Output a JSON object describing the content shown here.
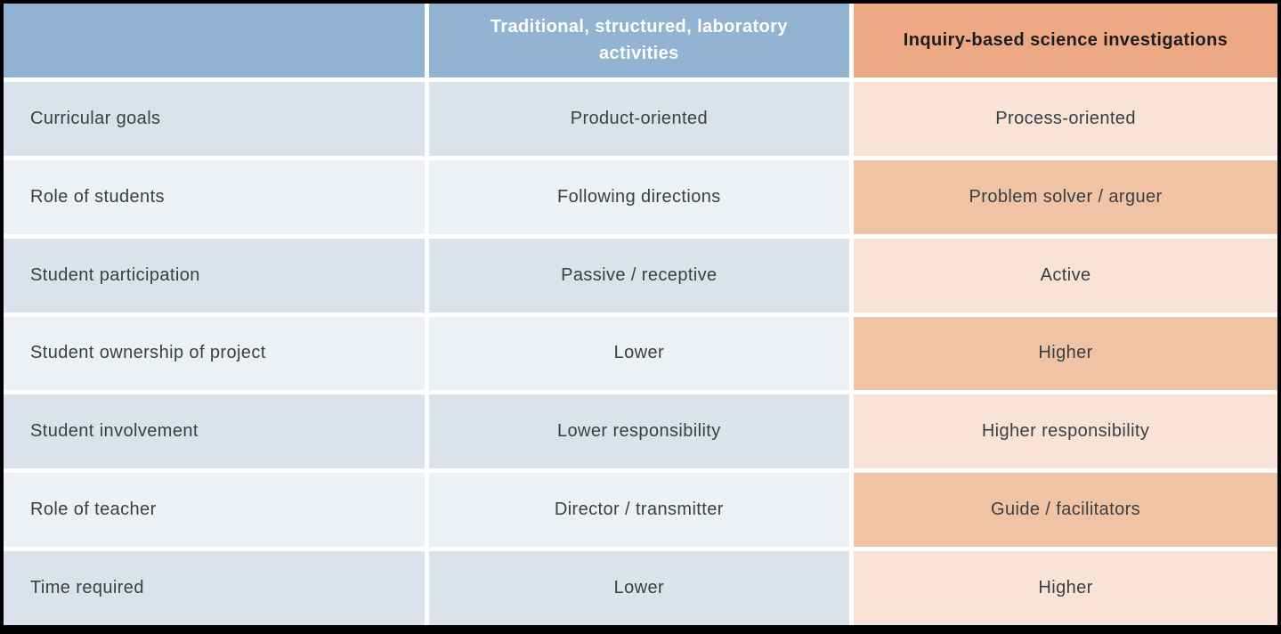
{
  "colors": {
    "header-blue": "#92b3d2",
    "header-orange": "#eda983",
    "row-blue-dark": "#dae2ec",
    "row-blue-light": "#edf1f6",
    "row-peach-light": "#f8e3d6",
    "row-peach-dark": "#efc3a4",
    "body-text": "#3a3e45",
    "header-text-dark": "#1e1e20",
    "frame-border": "#000000"
  },
  "table": {
    "header": {
      "label": "",
      "traditional": "Traditional, structured, laboratory activities",
      "inquiry": "Inquiry-based science investigations"
    },
    "rows": [
      {
        "label": "Curricular goals",
        "traditional": "Product-oriented",
        "inquiry": "Process-oriented"
      },
      {
        "label": "Role of students",
        "traditional": "Following directions",
        "inquiry": "Problem solver / arguer"
      },
      {
        "label": "Student participation",
        "traditional": "Passive / receptive",
        "inquiry": "Active"
      },
      {
        "label": "Student ownership of project",
        "traditional": "Lower",
        "inquiry": "Higher"
      },
      {
        "label": "Student involvement",
        "traditional": "Lower responsibility",
        "inquiry": "Higher responsibility"
      },
      {
        "label": "Role of teacher",
        "traditional": "Director / transmitter",
        "inquiry": "Guide / facilitators"
      },
      {
        "label": "Time required",
        "traditional": "Lower",
        "inquiry": "Higher"
      }
    ]
  }
}
